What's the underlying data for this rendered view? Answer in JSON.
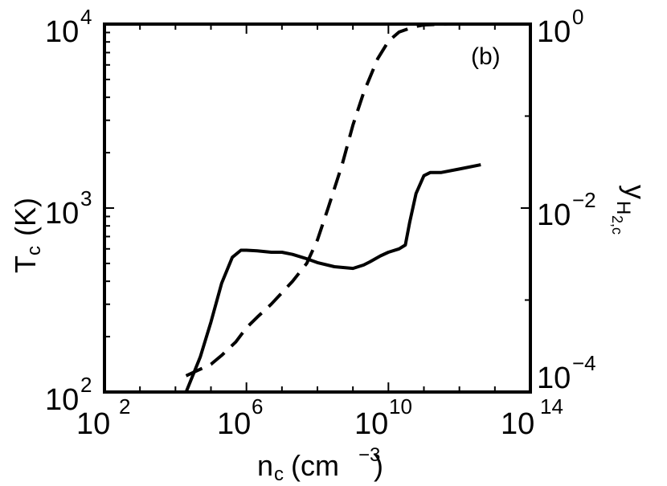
{
  "chart_data": {
    "type": "line",
    "panel_label": "(b)",
    "xlabel": {
      "main": "n",
      "sub": "c",
      "units_open": "(cm",
      "units_exp": "−3",
      "units_close": ")"
    },
    "ylabel_left": {
      "main": "T",
      "sub": "c",
      "units": "(K)"
    },
    "ylabel_right": {
      "main": "y",
      "sub1": "H",
      "sub2": "2,c"
    },
    "x_scale": "log",
    "xlim": [
      100,
      100000000000000
    ],
    "ylim_left": [
      100,
      10000
    ],
    "ylim_right": [
      0.0001,
      1
    ],
    "x_ticks": [
      {
        "base": "10",
        "exp": "2"
      },
      {
        "base": "10",
        "exp": "6"
      },
      {
        "base": "10",
        "exp": "10"
      },
      {
        "base": "10",
        "exp": "14"
      }
    ],
    "y_left_ticks": [
      {
        "base": "10",
        "exp": "2"
      },
      {
        "base": "10",
        "exp": "3"
      },
      {
        "base": "10",
        "exp": "4"
      }
    ],
    "y_right_ticks": [
      {
        "base": "10",
        "exp": "−4"
      },
      {
        "base": "10",
        "exp": "−2"
      },
      {
        "base": "10",
        "exp": "0"
      }
    ],
    "series": [
      {
        "axis": "left",
        "style": "solid",
        "color": "#000000",
        "x": [
          20000.0,
          50000.0,
          100000.0,
          200000.0,
          400000.0,
          700000.0,
          1000000.0,
          2000000.0,
          5000000.0,
          10000000.0,
          20000000.0,
          50000000.0,
          100000000.0,
          300000000.0,
          1000000000.0,
          2000000000.0,
          3000000000.0,
          6000000000.0,
          10000000000.0,
          20000000000.0,
          30000000000.0,
          40000000000.0,
          60000000000.0,
          100000000000.0,
          150000000000.0,
          300000000000.0,
          1000000000000.0,
          4000000000000.0
        ],
        "y": [
          100,
          155,
          240,
          390,
          540,
          590,
          590,
          585,
          575,
          575,
          560,
          530,
          505,
          480,
          470,
          490,
          510,
          550,
          575,
          600,
          630,
          840,
          1200,
          1500,
          1560,
          1560,
          1630,
          1720
        ]
      },
      {
        "axis": "right",
        "style": "dashed",
        "color": "#000000",
        "x": [
          20000.0,
          40000.0,
          100000.0,
          200000.0,
          500000.0,
          1000000.0,
          2000000.0,
          5000000.0,
          10000000.0,
          20000000.0,
          50000000.0,
          100000000.0,
          200000000.0,
          500000000.0,
          1000000000.0,
          2000000000.0,
          5000000000.0,
          10000000000.0,
          20000000000.0,
          50000000000.0,
          100000000000.0,
          200000000000.0,
          500000000000.0,
          1000000000000.0,
          4000000000000.0
        ],
        "y": [
          0.00015,
          0.00017,
          0.0002,
          0.00025,
          0.00035,
          0.0005,
          0.00065,
          0.0009,
          0.0012,
          0.0016,
          0.0025,
          0.0045,
          0.01,
          0.03,
          0.08,
          0.18,
          0.42,
          0.65,
          0.82,
          0.93,
          0.98,
          0.99,
          1.0,
          1.0,
          1.0
        ]
      }
    ]
  }
}
